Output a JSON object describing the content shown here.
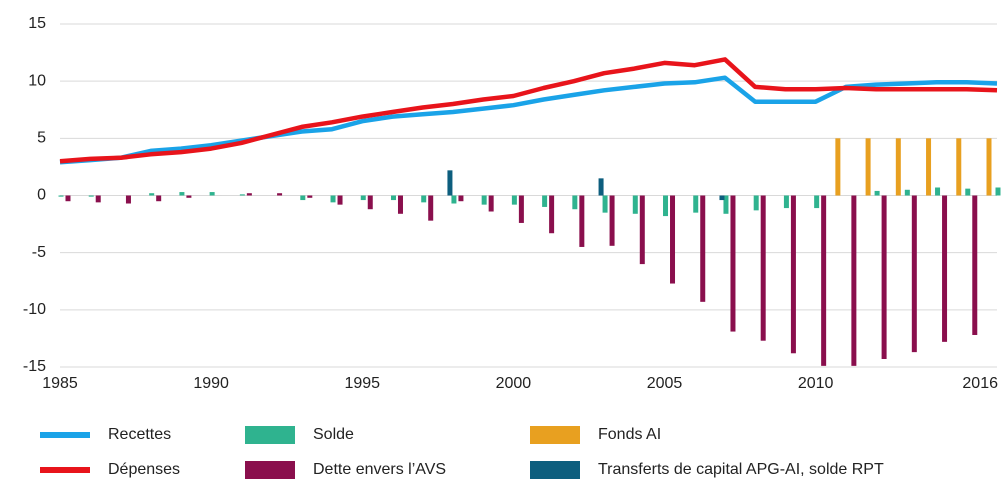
{
  "chart_data": {
    "type": "combo",
    "x": [
      1985,
      1986,
      1987,
      1988,
      1989,
      1990,
      1991,
      1992,
      1993,
      1994,
      1995,
      1996,
      1997,
      1998,
      1999,
      2000,
      2001,
      2002,
      2003,
      2004,
      2005,
      2006,
      2007,
      2008,
      2009,
      2010,
      2011,
      2012,
      2013,
      2014,
      2015,
      2016
    ],
    "xlim": [
      1985,
      2016
    ],
    "xticks": [
      1985,
      1990,
      1995,
      2000,
      2005,
      2010,
      2016
    ],
    "ylim": [
      -15,
      15
    ],
    "yticks": [
      -15,
      -10,
      -5,
      0,
      5,
      10,
      15
    ],
    "grid": true,
    "series": [
      {
        "name": "Recettes",
        "kind": "line",
        "color": "#1aa3e8",
        "values": [
          2.9,
          3.1,
          3.3,
          3.9,
          4.1,
          4.4,
          4.8,
          5.2,
          5.6,
          5.8,
          6.5,
          6.9,
          7.1,
          7.3,
          7.6,
          7.9,
          8.4,
          8.8,
          9.2,
          9.5,
          9.8,
          9.9,
          10.3,
          8.2,
          8.2,
          8.2,
          9.5,
          9.7,
          9.8,
          9.9,
          9.9,
          9.8
        ]
      },
      {
        "name": "Dépenses",
        "kind": "line",
        "color": "#e8141b",
        "values": [
          3.0,
          3.2,
          3.3,
          3.6,
          3.8,
          4.1,
          4.6,
          5.3,
          6.0,
          6.4,
          6.9,
          7.3,
          7.7,
          8.0,
          8.4,
          8.7,
          9.4,
          10.0,
          10.7,
          11.1,
          11.6,
          11.4,
          11.9,
          9.5,
          9.3,
          9.3,
          9.4,
          9.3,
          9.3,
          9.3,
          9.3,
          9.2
        ]
      },
      {
        "name": "Solde",
        "kind": "bar",
        "color": "#2fb38f",
        "offset": 1,
        "values": [
          -0.1,
          -0.1,
          0,
          0.2,
          0.3,
          0.3,
          0.1,
          0,
          -0.4,
          -0.6,
          -0.4,
          -0.4,
          -0.6,
          -0.7,
          -0.8,
          -0.8,
          -1.0,
          -1.2,
          -1.5,
          -1.6,
          -1.8,
          -1.5,
          -1.6,
          -1.3,
          -1.1,
          -1.1,
          0,
          0.4,
          0.5,
          0.7,
          0.6,
          0.7
        ]
      },
      {
        "name": "Dette envers l’AVS",
        "kind": "bar",
        "color": "#8a0f4d",
        "offset": 8,
        "values": [
          -0.5,
          -0.6,
          -0.7,
          -0.5,
          -0.2,
          0,
          0.2,
          0.2,
          -0.2,
          -0.8,
          -1.2,
          -1.6,
          -2.2,
          -0.5,
          -1.4,
          -2.4,
          -3.3,
          -4.5,
          -4.4,
          -6.0,
          -7.7,
          -9.3,
          -11.9,
          -12.7,
          -13.8,
          -14.9,
          -14.9,
          -14.3,
          -13.7,
          -12.8,
          -12.2,
          null
        ]
      },
      {
        "name": "Fonds AI",
        "kind": "bar",
        "color": "#e8a020",
        "offset": -8,
        "values": [
          null,
          null,
          null,
          null,
          null,
          null,
          null,
          null,
          null,
          null,
          null,
          null,
          null,
          null,
          null,
          null,
          null,
          null,
          null,
          null,
          null,
          null,
          null,
          null,
          null,
          null,
          5,
          5,
          5,
          5,
          5,
          5
        ]
      },
      {
        "name": "Transferts de capital APG-AI, solde RPT",
        "kind": "bar",
        "color": "#0d5e7e",
        "offset": -3,
        "values": [
          null,
          null,
          null,
          null,
          null,
          null,
          null,
          null,
          null,
          null,
          null,
          null,
          null,
          2.2,
          null,
          null,
          null,
          null,
          1.5,
          null,
          null,
          null,
          -0.4,
          null,
          null,
          null,
          null,
          null,
          null,
          null,
          null,
          null
        ]
      }
    ]
  }
}
